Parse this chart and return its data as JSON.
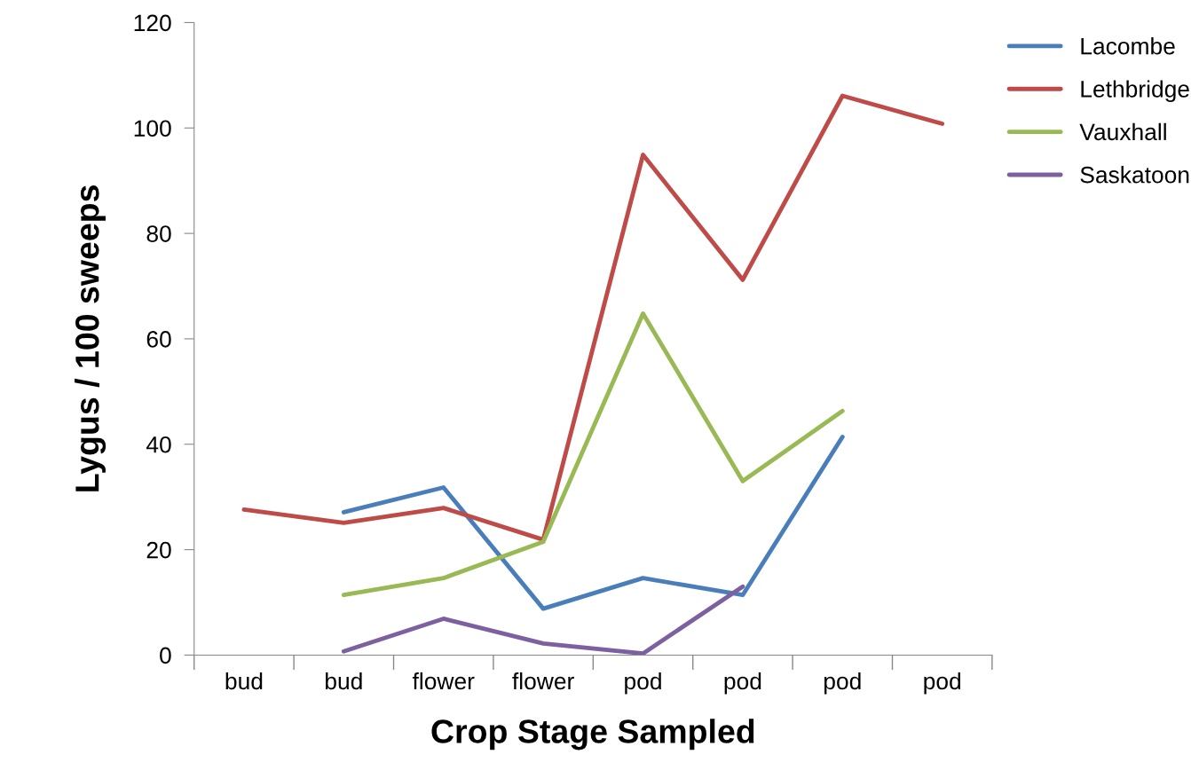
{
  "chart_data": {
    "type": "line",
    "xlabel": "Crop Stage Sampled",
    "ylabel": "Lygus / 100 sweeps",
    "categories": [
      "bud",
      "bud",
      "flower",
      "flower",
      "pod",
      "pod",
      "pod",
      "pod"
    ],
    "series": [
      {
        "name": "Lacombe",
        "color": "#4a7ebb",
        "values": [
          null,
          27.1,
          31.8,
          8.8,
          14.6,
          11.4,
          41.4,
          null
        ]
      },
      {
        "name": "Lethbridge",
        "color": "#be4b48",
        "values": [
          27.6,
          25.1,
          27.9,
          21.9,
          94.9,
          71.2,
          106.1,
          100.8
        ]
      },
      {
        "name": "Vauxhall",
        "color": "#98b954",
        "values": [
          null,
          11.4,
          14.6,
          21.5,
          64.8,
          33.0,
          46.3,
          null
        ]
      },
      {
        "name": "Saskatoon",
        "color": "#7d60a0",
        "values": [
          null,
          0.7,
          6.9,
          2.2,
          0.3,
          13.0,
          null,
          null
        ]
      }
    ],
    "ylim": [
      0,
      120
    ],
    "yticks": [
      0,
      20,
      40,
      60,
      80,
      100,
      120
    ],
    "grid": false,
    "legend": "top right",
    "marker": "none",
    "line_style": "solid"
  }
}
